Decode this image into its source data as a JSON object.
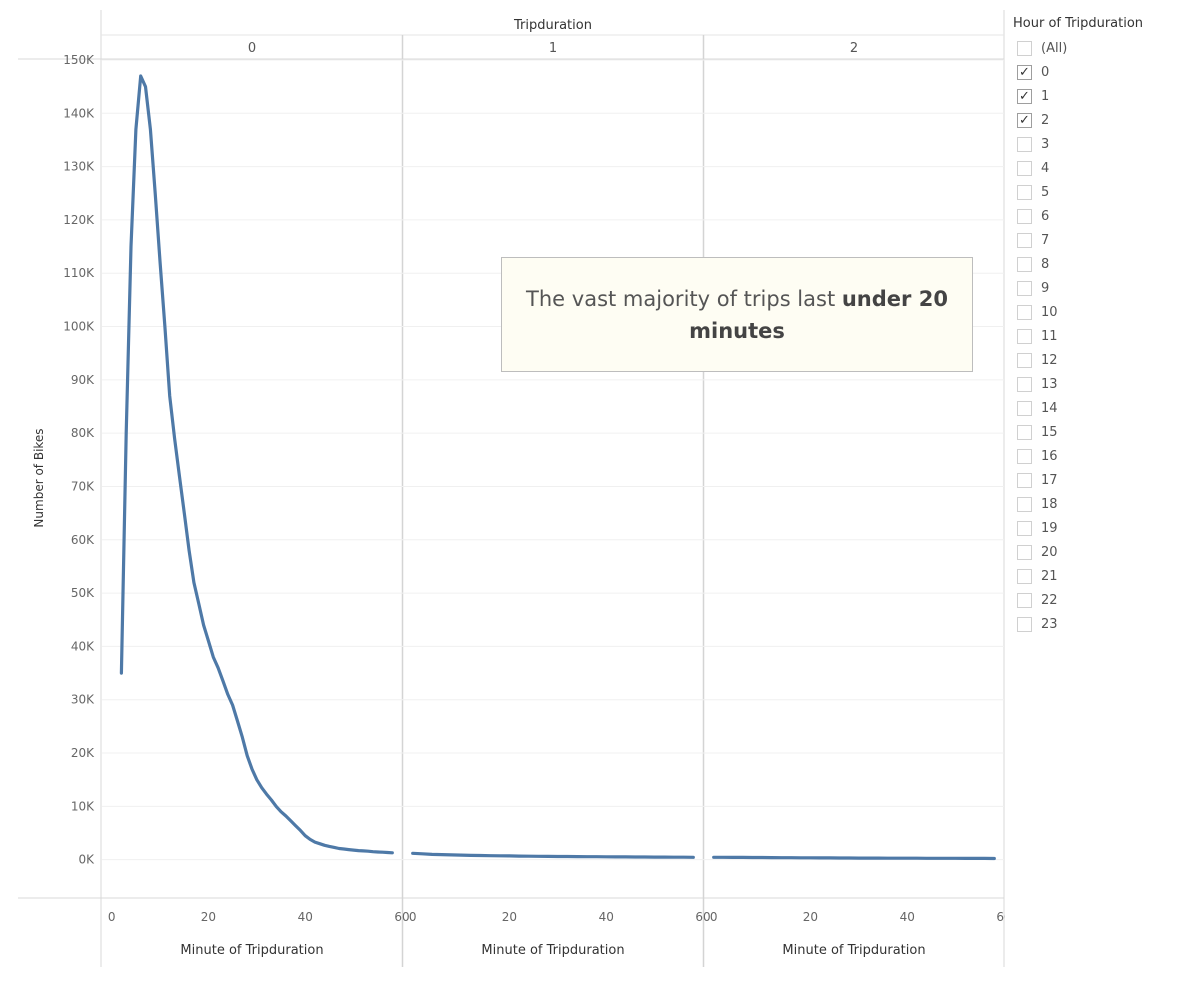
{
  "chart_data": {
    "type": "line",
    "column_header_title": "Tripduration",
    "panels": [
      {
        "label": "0",
        "series": [
          {
            "x": [
              2,
              3,
              4,
              5,
              6,
              7,
              8,
              9,
              10,
              11,
              12,
              13,
              14,
              15,
              16,
              17,
              18,
              19,
              20,
              21,
              22,
              23,
              24,
              25,
              26,
              27,
              28,
              29,
              30,
              31,
              32,
              33,
              34,
              35,
              36,
              37,
              38,
              39,
              40,
              41,
              42,
              43,
              44,
              45,
              46,
              47,
              48,
              49,
              50,
              51,
              52,
              53,
              54,
              55,
              56,
              57,
              58
            ],
            "y": [
              35000,
              80000,
              115000,
              137000,
              147000,
              145000,
              137000,
              125000,
              112000,
              100000,
              87000,
              79000,
              72000,
              65000,
              58000,
              52000,
              48000,
              44000,
              41000,
              38000,
              36000,
              33500,
              31000,
              29000,
              26000,
              23000,
              19500,
              17000,
              15000,
              13500,
              12300,
              11200,
              10000,
              9000,
              8200,
              7300,
              6400,
              5500,
              4500,
              3800,
              3300,
              3000,
              2700,
              2500,
              2300,
              2100,
              2000,
              1900,
              1800,
              1700,
              1650,
              1600,
              1500,
              1450,
              1400,
              1350,
              1300
            ]
          }
        ]
      },
      {
        "label": "1",
        "series": [
          {
            "x": [
              0,
              2,
              4,
              6,
              8,
              10,
              12,
              14,
              16,
              18,
              20,
              22,
              24,
              26,
              28,
              30,
              32,
              34,
              36,
              38,
              40,
              42,
              44,
              46,
              48,
              50,
              52,
              54,
              56,
              58
            ],
            "y": [
              1200,
              1100,
              1000,
              950,
              900,
              850,
              800,
              780,
              750,
              720,
              700,
              680,
              660,
              640,
              620,
              600,
              590,
              570,
              560,
              550,
              540,
              530,
              520,
              510,
              500,
              490,
              480,
              470,
              460,
              450
            ]
          }
        ]
      },
      {
        "label": "2",
        "series": [
          {
            "x": [
              0,
              2,
              4,
              6,
              8,
              10,
              12,
              14,
              16,
              18,
              20,
              22,
              24,
              26,
              28,
              30,
              32,
              34,
              36,
              38,
              40,
              42,
              44,
              46,
              48,
              50,
              52,
              54,
              56,
              58
            ],
            "y": [
              450,
              440,
              430,
              420,
              410,
              400,
              390,
              380,
              370,
              360,
              350,
              340,
              330,
              320,
              310,
              300,
              295,
              290,
              285,
              280,
              275,
              270,
              265,
              260,
              255,
              250,
              245,
              240,
              235,
              230
            ]
          }
        ]
      }
    ],
    "xlabel": "Minute of Tripduration",
    "ylabel": "Number of Bikes",
    "xlim": [
      -2,
      60
    ],
    "ylim": [
      -7000,
      150000
    ],
    "x_ticks": [
      0,
      20,
      40,
      60
    ],
    "x_tick_labels": [
      "0",
      "20",
      "40",
      "60"
    ],
    "y_ticks": [
      0,
      10000,
      20000,
      30000,
      40000,
      50000,
      60000,
      70000,
      80000,
      90000,
      100000,
      110000,
      120000,
      130000,
      140000,
      150000
    ],
    "y_tick_labels": [
      "0K",
      "10K",
      "20K",
      "30K",
      "40K",
      "50K",
      "60K",
      "70K",
      "80K",
      "90K",
      "100K",
      "110K",
      "120K",
      "130K",
      "140K",
      "150K"
    ],
    "grid": true,
    "line_color": "#4e79a7"
  },
  "annotation": {
    "text_regular": "The vast majority of trips last ",
    "text_bold": "under 20 minutes"
  },
  "filter": {
    "title": "Hour of Tripduration",
    "items": [
      {
        "label": "(All)",
        "checked": false
      },
      {
        "label": "0",
        "checked": true
      },
      {
        "label": "1",
        "checked": true
      },
      {
        "label": "2",
        "checked": true
      },
      {
        "label": "3",
        "checked": false
      },
      {
        "label": "4",
        "checked": false
      },
      {
        "label": "5",
        "checked": false
      },
      {
        "label": "6",
        "checked": false
      },
      {
        "label": "7",
        "checked": false
      },
      {
        "label": "8",
        "checked": false
      },
      {
        "label": "9",
        "checked": false
      },
      {
        "label": "10",
        "checked": false
      },
      {
        "label": "11",
        "checked": false
      },
      {
        "label": "12",
        "checked": false
      },
      {
        "label": "13",
        "checked": false
      },
      {
        "label": "14",
        "checked": false
      },
      {
        "label": "15",
        "checked": false
      },
      {
        "label": "16",
        "checked": false
      },
      {
        "label": "17",
        "checked": false
      },
      {
        "label": "18",
        "checked": false
      },
      {
        "label": "19",
        "checked": false
      },
      {
        "label": "20",
        "checked": false
      },
      {
        "label": "21",
        "checked": false
      },
      {
        "label": "22",
        "checked": false
      },
      {
        "label": "23",
        "checked": false
      }
    ],
    "check_glyph": "✓"
  }
}
